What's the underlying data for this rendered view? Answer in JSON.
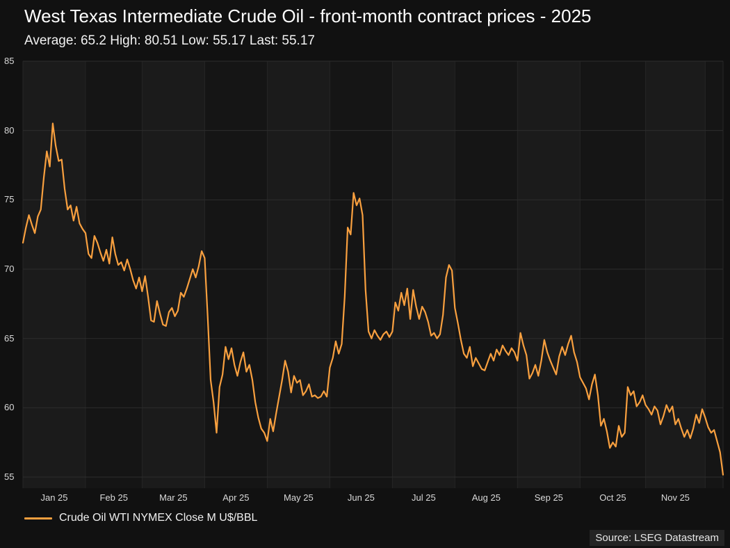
{
  "header": {
    "title": "West Texas Intermediate Crude Oil - front-month contract prices - 2025",
    "stats_line": "Average: 65.2 High: 80.51 Low: 55.17 Last: 55.17"
  },
  "legend": {
    "label": "Crude Oil WTI NYMEX Close M U$/BBL"
  },
  "footer": {
    "source": "Source: LSEG Datastream"
  },
  "colors": {
    "background": "#111111",
    "band_light": "#1b1b1b",
    "band_dark": "#151515",
    "grid_horizontal": "#2d2d2d",
    "grid_vertical": "#262626",
    "line": "#f9a03f",
    "text": "#d9d9d9"
  },
  "chart_data": {
    "type": "line",
    "title": "West Texas Intermediate Crude Oil - front-month contract prices - 2025",
    "stats": {
      "average": 65.2,
      "high": 80.51,
      "low": 55.17,
      "last": 55.17
    },
    "xlabel": "",
    "ylabel": "U$/BBL",
    "x_tick_labels": [
      "Jan 25",
      "Feb 25",
      "Mar 25",
      "Apr 25",
      "May 25",
      "Jun 25",
      "Jul 25",
      "Aug 25",
      "Sep 25",
      "Oct 25",
      "Nov 25"
    ],
    "month_point_counts": [
      21,
      19,
      21,
      21,
      21,
      21,
      21,
      21,
      21,
      22,
      20,
      7
    ],
    "y_ticks": [
      55,
      60,
      65,
      70,
      75,
      80,
      85
    ],
    "ylim": [
      54.2,
      85
    ],
    "grid": true,
    "legend_position": "bottom-left",
    "series": [
      {
        "name": "Crude Oil WTI NYMEX Close M U$/BBL",
        "color": "#f9a03f",
        "values": [
          71.9,
          73.0,
          73.9,
          73.2,
          72.6,
          73.8,
          74.3,
          76.6,
          78.5,
          77.4,
          80.51,
          78.9,
          77.8,
          77.9,
          75.8,
          74.3,
          74.6,
          73.5,
          74.5,
          73.3,
          72.9,
          72.6,
          71.1,
          70.8,
          72.4,
          71.9,
          71.2,
          70.6,
          71.4,
          70.4,
          72.3,
          71.1,
          70.3,
          70.5,
          69.9,
          70.7,
          70.0,
          69.2,
          68.6,
          69.4,
          68.4,
          69.5,
          68.0,
          66.3,
          66.2,
          67.7,
          66.8,
          66.0,
          65.9,
          66.9,
          67.2,
          66.6,
          67.0,
          68.3,
          68.0,
          68.6,
          69.3,
          70.0,
          69.4,
          70.2,
          71.3,
          70.8,
          66.6,
          62.0,
          60.4,
          58.2,
          61.5,
          62.4,
          64.4,
          63.5,
          64.3,
          63.1,
          62.3,
          63.3,
          64.0,
          62.6,
          63.1,
          62.0,
          60.4,
          59.3,
          58.5,
          58.2,
          57.6,
          59.2,
          58.3,
          59.6,
          60.8,
          62.0,
          63.4,
          62.6,
          61.1,
          62.3,
          61.8,
          62.0,
          60.9,
          61.2,
          61.7,
          60.8,
          60.9,
          60.7,
          60.8,
          61.2,
          60.8,
          62.9,
          63.6,
          64.8,
          63.9,
          64.6,
          68.0,
          73.0,
          72.5,
          75.5,
          74.6,
          75.1,
          73.9,
          68.5,
          65.5,
          65.0,
          65.6,
          65.2,
          64.9,
          65.3,
          65.5,
          65.1,
          65.5,
          67.6,
          67.0,
          68.3,
          67.4,
          68.6,
          66.4,
          68.5,
          67.3,
          66.4,
          67.3,
          66.9,
          66.2,
          65.2,
          65.4,
          65.0,
          65.3,
          66.7,
          69.4,
          70.3,
          69.9,
          67.2,
          66.1,
          64.9,
          63.9,
          63.6,
          64.4,
          63.0,
          63.6,
          63.2,
          62.8,
          62.7,
          63.3,
          63.9,
          63.4,
          64.2,
          63.8,
          64.5,
          64.1,
          63.8,
          64.3,
          64.0,
          63.4,
          65.4,
          64.5,
          63.8,
          62.1,
          62.5,
          63.1,
          62.3,
          63.4,
          64.9,
          64.0,
          63.4,
          62.9,
          62.4,
          63.7,
          64.4,
          63.8,
          64.6,
          65.2,
          64.0,
          63.3,
          62.2,
          61.8,
          61.4,
          60.6,
          61.7,
          62.4,
          60.9,
          58.7,
          59.2,
          58.3,
          57.1,
          57.5,
          57.2,
          58.7,
          57.9,
          58.2,
          61.5,
          60.9,
          61.2,
          60.1,
          60.4,
          60.9,
          60.2,
          59.9,
          59.5,
          60.1,
          59.8,
          58.8,
          59.4,
          60.2,
          59.7,
          60.1,
          58.8,
          59.2,
          58.5,
          57.9,
          58.4,
          57.8,
          58.5,
          59.5,
          58.9,
          59.9,
          59.3,
          58.6,
          58.2,
          58.4,
          57.6,
          56.8,
          55.17
        ]
      }
    ],
    "source": "Source: LSEG Datastream"
  }
}
